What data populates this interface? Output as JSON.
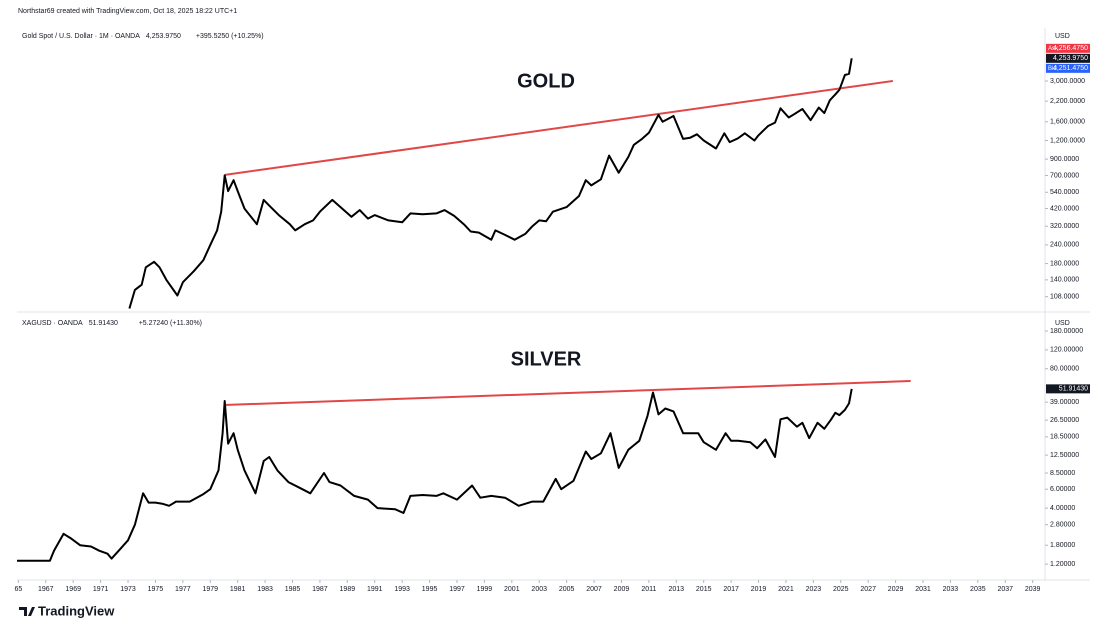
{
  "header": {
    "attribution": "Northstar69 created with TradingView.com, Oct 18, 2025 18:22 UTC+1"
  },
  "footer": {
    "brand": "TradingView"
  },
  "chart_data": [
    {
      "type": "line",
      "title": "GOLD",
      "symbol": "Gold Spot / U.S. Dollar · 1M · OANDA",
      "last_price": "4,253.9750",
      "change": "+395.5250 (+10.25%)",
      "currency": "USD",
      "ask_label": "Ask",
      "ask": "4,256.4750",
      "bid_label": "Bid",
      "bid": "4,251.4750",
      "log_scale": true,
      "grid": false,
      "color": "#000000",
      "xlim": [
        1964.9,
        2039.9
      ],
      "ylim": [
        88,
        6790
      ],
      "yticks": [
        {
          "value": 3000,
          "label": "3,000.0000"
        },
        {
          "value": 2200,
          "label": "2,200.0000"
        },
        {
          "value": 1600,
          "label": "1,600.0000"
        },
        {
          "value": 1200,
          "label": "1,200.0000"
        },
        {
          "value": 900,
          "label": "900.0000"
        },
        {
          "value": 700,
          "label": "700.0000"
        },
        {
          "value": 540,
          "label": "540.0000"
        },
        {
          "value": 420,
          "label": "420.0000"
        },
        {
          "value": 320,
          "label": "320.0000"
        },
        {
          "value": 240,
          "label": "240.0000"
        },
        {
          "value": 180,
          "label": "180.0000"
        },
        {
          "value": 140,
          "label": "140.0000"
        },
        {
          "value": 108,
          "label": "108.0000"
        }
      ],
      "x": [
        1973.1,
        1973.5,
        1974.0,
        1974.3,
        1974.9,
        1975.3,
        1975.8,
        1976.6,
        1977.0,
        1977.8,
        1978.5,
        1979.0,
        1979.5,
        1979.8,
        1980.05,
        1980.3,
        1980.7,
        1981.0,
        1981.5,
        1982.4,
        1982.9,
        1983.3,
        1984.0,
        1984.8,
        1985.2,
        1985.9,
        1986.5,
        1987.0,
        1987.9,
        1988.5,
        1989.3,
        1989.9,
        1990.5,
        1991.0,
        1992.0,
        1993.0,
        1993.6,
        1994.5,
        1995.5,
        1996.1,
        1996.8,
        1997.5,
        1998.0,
        1998.6,
        1999.5,
        1999.8,
        2000.5,
        2001.2,
        2002.0,
        2002.5,
        2003.0,
        2003.5,
        2004.0,
        2005.0,
        2005.9,
        2006.4,
        2006.8,
        2007.5,
        2008.1,
        2008.8,
        2009.5,
        2009.9,
        2010.5,
        2011.0,
        2011.7,
        2012.0,
        2012.8,
        2013.5,
        2014.0,
        2014.5,
        2015.0,
        2015.9,
        2016.5,
        2016.9,
        2017.5,
        2018.0,
        2018.7,
        2019.0,
        2019.7,
        2020.2,
        2020.6,
        2021.2,
        2021.6,
        2022.2,
        2022.8,
        2023.4,
        2023.8,
        2024.2,
        2024.6,
        2024.9,
        2025.3,
        2025.6,
        2025.8
      ],
      "values": [
        90,
        120,
        130,
        170,
        185,
        170,
        140,
        110,
        135,
        160,
        190,
        240,
        300,
        400,
        700,
        550,
        650,
        550,
        420,
        330,
        480,
        440,
        380,
        330,
        300,
        330,
        350,
        400,
        480,
        430,
        370,
        410,
        360,
        380,
        350,
        340,
        390,
        385,
        390,
        410,
        375,
        330,
        295,
        290,
        260,
        300,
        280,
        260,
        285,
        320,
        350,
        345,
        400,
        430,
        510,
        650,
        600,
        660,
        950,
        730,
        930,
        1120,
        1230,
        1350,
        1780,
        1600,
        1750,
        1230,
        1250,
        1320,
        1200,
        1060,
        1340,
        1170,
        1240,
        1340,
        1200,
        1300,
        1500,
        1580,
        1970,
        1710,
        1800,
        1950,
        1640,
        1990,
        1830,
        2230,
        2440,
        2620,
        3290,
        3350,
        4253.975
      ],
      "trendline": {
        "color": "#e04848",
        "x": [
          1980.07,
          2028.8
        ],
        "values": [
          706,
          3000
        ]
      }
    },
    {
      "type": "line",
      "title": "SILVER",
      "symbol": "XAGUSD · OANDA",
      "last_price": "51.91430",
      "change": "+5.27240 (+11.30%)",
      "currency": "USD",
      "log_scale": true,
      "grid": false,
      "color": "#000000",
      "xlim": [
        1964.9,
        2039.9
      ],
      "ylim": [
        0.89,
        254
      ],
      "xticks": [
        {
          "value": 1965,
          "label": "65"
        },
        1967,
        1969,
        1971,
        1973,
        1975,
        1977,
        1979,
        1981,
        1983,
        1985,
        1987,
        1989,
        1991,
        1993,
        1995,
        1997,
        1999,
        2001,
        2003,
        2005,
        2007,
        2009,
        2011,
        2013,
        2015,
        2017,
        2019,
        2021,
        2023,
        2025,
        2027,
        2029,
        2031,
        2033,
        2035,
        2037,
        2039
      ],
      "yticks": [
        {
          "value": 180,
          "label": "180.00000"
        },
        {
          "value": 120,
          "label": "120.00000"
        },
        {
          "value": 80,
          "label": "80.00000"
        },
        {
          "value": 39,
          "label": "39.00000"
        },
        {
          "value": 26.5,
          "label": "26.50000"
        },
        {
          "value": 18.5,
          "label": "18.50000"
        },
        {
          "value": 12.5,
          "label": "12.50000"
        },
        {
          "value": 8.5,
          "label": "8.50000"
        },
        {
          "value": 6,
          "label": "6.00000"
        },
        {
          "value": 4,
          "label": "4.00000"
        },
        {
          "value": 2.8,
          "label": "2.80000"
        },
        {
          "value": 1.8,
          "label": "1.80000"
        },
        {
          "value": 1.2,
          "label": "1.20000"
        }
      ],
      "x": [
        1964.9,
        1967.3,
        1967.6,
        1968.3,
        1968.8,
        1969.5,
        1970.3,
        1970.9,
        1971.5,
        1971.8,
        1972.5,
        1973.0,
        1973.5,
        1974.1,
        1974.5,
        1975.0,
        1975.5,
        1976.0,
        1976.5,
        1977.5,
        1978.5,
        1979.0,
        1979.6,
        1979.9,
        1980.05,
        1980.3,
        1980.7,
        1981.0,
        1981.5,
        1982.3,
        1982.9,
        1983.3,
        1983.9,
        1984.7,
        1985.5,
        1986.3,
        1987.3,
        1987.7,
        1988.5,
        1989.5,
        1990.5,
        1991.2,
        1992.5,
        1993.1,
        1993.6,
        1994.5,
        1995.5,
        1996.0,
        1997.0,
        1998.1,
        1998.7,
        1999.5,
        2000.5,
        2001.5,
        2002.5,
        2003.3,
        2004.2,
        2004.6,
        2005.5,
        2006.4,
        2006.8,
        2007.5,
        2008.2,
        2008.8,
        2009.5,
        2010.3,
        2010.9,
        2011.3,
        2011.7,
        2012.2,
        2012.8,
        2013.5,
        2014.0,
        2014.6,
        2015.0,
        2015.9,
        2016.6,
        2017.0,
        2017.5,
        2018.4,
        2018.9,
        2019.5,
        2020.2,
        2020.6,
        2021.1,
        2021.8,
        2022.2,
        2022.7,
        2023.3,
        2023.8,
        2024.3,
        2024.6,
        2024.9,
        2025.3,
        2025.6,
        2025.8
      ],
      "values": [
        1.29,
        1.29,
        1.6,
        2.3,
        2.1,
        1.8,
        1.75,
        1.6,
        1.5,
        1.35,
        1.7,
        2.0,
        2.8,
        5.5,
        4.5,
        4.5,
        4.4,
        4.2,
        4.6,
        4.6,
        5.4,
        6.0,
        9,
        20,
        40,
        16,
        20,
        14,
        9,
        5.5,
        11,
        12,
        9,
        7,
        6.2,
        5.5,
        8.5,
        7,
        6.5,
        5.2,
        4.8,
        4.0,
        3.9,
        3.6,
        5.2,
        5.3,
        5.2,
        5.5,
        4.8,
        6.5,
        5.0,
        5.2,
        5.0,
        4.2,
        4.6,
        4.6,
        7.5,
        6.0,
        7.2,
        13.5,
        11.5,
        13,
        20,
        9.5,
        14,
        17,
        29,
        48,
        30,
        34,
        32,
        20,
        20,
        20,
        16.5,
        14,
        20,
        17,
        17,
        16.5,
        14.5,
        17.5,
        12,
        27,
        28,
        23,
        25,
        18,
        25,
        22,
        27,
        31,
        29.5,
        33,
        38,
        51.9143
      ],
      "trendline": {
        "color": "#e04848",
        "x": [
          1980.0,
          2030.1
        ],
        "values": [
          36.7,
          61.4
        ]
      }
    }
  ]
}
